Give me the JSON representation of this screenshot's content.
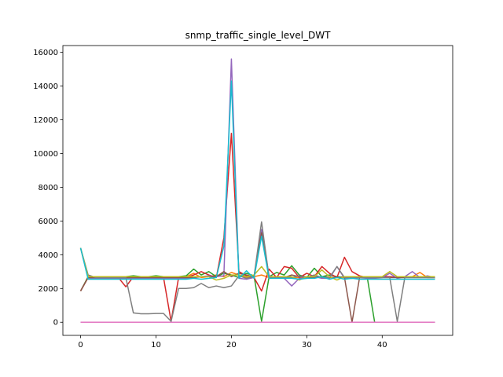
{
  "chart_data": {
    "type": "line",
    "title": "snmp_traffic_single_level_DWT",
    "xlabel": "",
    "ylabel": "",
    "xlim": [
      -2.35,
      49.35
    ],
    "ylim": [
      -780,
      16400
    ],
    "xticks": [
      0,
      10,
      20,
      30,
      40
    ],
    "yticks": [
      0,
      2000,
      4000,
      6000,
      8000,
      10000,
      12000,
      14000,
      16000
    ],
    "grid": false,
    "legend": "none",
    "colors": [
      "#1f77b4",
      "#ff7f0e",
      "#2ca02c",
      "#d62728",
      "#9467bd",
      "#8c564b",
      "#e377c2",
      "#7f7f7f",
      "#bcbd22",
      "#17becf"
    ],
    "x": [
      0,
      1,
      2,
      3,
      4,
      5,
      6,
      7,
      8,
      9,
      10,
      11,
      12,
      13,
      14,
      15,
      16,
      17,
      18,
      19,
      20,
      21,
      22,
      23,
      24,
      25,
      26,
      27,
      28,
      29,
      30,
      31,
      32,
      33,
      34,
      35,
      36,
      37,
      38,
      39,
      40,
      41,
      42,
      43,
      44,
      45,
      46,
      47
    ],
    "series": [
      {
        "values": [
          0,
          0,
          0,
          0,
          0,
          0,
          0,
          0,
          0,
          0,
          0,
          0,
          0,
          0,
          0,
          0,
          0,
          0,
          0,
          0,
          0,
          0,
          0,
          0,
          0,
          0,
          0,
          0,
          0,
          0,
          0,
          0,
          0,
          0,
          0,
          0,
          0,
          0,
          0,
          0,
          0,
          0,
          0,
          0,
          0,
          0,
          0,
          0
        ]
      },
      {
        "values": [
          4400,
          2650,
          2650,
          2600,
          2650,
          2650,
          2650,
          2600,
          2650,
          2650,
          2650,
          2600,
          2600,
          2650,
          2700,
          2900,
          2650,
          2700,
          2800,
          2700,
          2950,
          2800,
          2650,
          2700,
          2800,
          2650,
          2650,
          2700,
          2650,
          2650,
          2700,
          2650,
          2700,
          2650,
          2650,
          2700,
          2650,
          2650,
          2650,
          2700,
          2650,
          2700,
          2650,
          2650,
          2700,
          2950,
          2650,
          2650
        ]
      },
      {
        "values": [
          1850,
          2700,
          2650,
          2700,
          2700,
          2650,
          2700,
          2750,
          2700,
          2700,
          2750,
          2700,
          2650,
          2700,
          2750,
          3150,
          2800,
          3000,
          2700,
          2900,
          2800,
          2650,
          2900,
          2750,
          50,
          2700,
          2950,
          2800,
          3350,
          2800,
          2650,
          3200,
          2700,
          2800,
          2700,
          2650,
          2600,
          2700,
          2700,
          0,
          0,
          0,
          0,
          0,
          0,
          0,
          0,
          0
        ]
      },
      {
        "values": [
          1850,
          2650,
          2600,
          2650,
          2650,
          2650,
          2100,
          2700,
          2650,
          2650,
          2650,
          2650,
          50,
          2650,
          2650,
          2800,
          3000,
          2800,
          2650,
          5000,
          11200,
          3000,
          2750,
          2650,
          1850,
          3150,
          2650,
          3300,
          3200,
          2650,
          2900,
          2700,
          3300,
          2900,
          2650,
          3850,
          3000,
          2750,
          2650,
          2650,
          2700,
          2700,
          2650,
          2700,
          2700,
          2700,
          2700,
          2650
        ]
      },
      {
        "values": [
          4400,
          2600,
          2600,
          2600,
          2600,
          2600,
          2600,
          2600,
          2600,
          2600,
          2600,
          2600,
          2600,
          2600,
          2600,
          2650,
          2700,
          2750,
          2700,
          2750,
          15600,
          2600,
          2550,
          2650,
          5500,
          2750,
          2650,
          2600,
          2150,
          2600,
          2600,
          2700,
          2600,
          2600,
          3300,
          2600,
          2600,
          2650,
          2600,
          2600,
          2650,
          2900,
          2600,
          2700,
          3000,
          2650,
          2750,
          2650
        ]
      },
      {
        "values": [
          1850,
          2650,
          2650,
          2650,
          2650,
          2650,
          2650,
          2650,
          2650,
          2650,
          2650,
          2650,
          2650,
          2650,
          2650,
          2650,
          2700,
          2700,
          2700,
          3000,
          2700,
          2900,
          2800,
          2700,
          5300,
          2650,
          2700,
          2650,
          2800,
          2700,
          2650,
          2650,
          2700,
          2650,
          2650,
          2650,
          0,
          2650,
          2650,
          2650,
          2650,
          2650,
          2650,
          2650,
          2650,
          2650,
          2650,
          2650
        ]
      },
      {
        "values": [
          0,
          0,
          0,
          0,
          0,
          0,
          0,
          0,
          0,
          0,
          0,
          0,
          0,
          0,
          0,
          0,
          0,
          0,
          0,
          0,
          0,
          0,
          0,
          0,
          0,
          0,
          0,
          0,
          0,
          0,
          0,
          0,
          0,
          0,
          0,
          0,
          0,
          0,
          0,
          0,
          0,
          0,
          0,
          0,
          0,
          0,
          0,
          0
        ]
      },
      {
        "values": [
          4400,
          2800,
          2650,
          2650,
          2650,
          2650,
          2650,
          550,
          500,
          500,
          520,
          520,
          50,
          2000,
          2000,
          2050,
          2300,
          2050,
          2150,
          2050,
          2150,
          2750,
          2600,
          2700,
          5950,
          2650,
          2700,
          2650,
          2650,
          2750,
          2650,
          2800,
          2650,
          2650,
          3300,
          2650,
          2650,
          2650,
          2650,
          2650,
          2650,
          2650,
          50,
          2650,
          2650,
          2650,
          2650,
          2650
        ]
      },
      {
        "values": [
          4400,
          2700,
          2700,
          2700,
          2700,
          2700,
          2700,
          2700,
          2700,
          2700,
          2700,
          2700,
          2700,
          2700,
          2700,
          2700,
          2700,
          2700,
          2500,
          2600,
          2800,
          2800,
          2700,
          2800,
          3300,
          2700,
          2700,
          2700,
          2700,
          2500,
          2700,
          2700,
          3100,
          2700,
          2500,
          2700,
          2700,
          2700,
          2700,
          2700,
          2700,
          3000,
          2700,
          2700,
          2700,
          2700,
          2700,
          2700
        ]
      },
      {
        "values": [
          4400,
          2550,
          2550,
          2550,
          2550,
          2550,
          2550,
          2550,
          2550,
          2550,
          2550,
          2550,
          2550,
          2550,
          2550,
          2600,
          2550,
          2600,
          2650,
          4500,
          14300,
          2600,
          3050,
          2600,
          5100,
          2600,
          2600,
          2600,
          2600,
          2550,
          2600,
          2600,
          2700,
          2550,
          2650,
          2550,
          2600,
          2550,
          2550,
          2550,
          2550,
          2550,
          2550,
          2550,
          2550,
          2550,
          2550,
          2550
        ]
      }
    ]
  }
}
